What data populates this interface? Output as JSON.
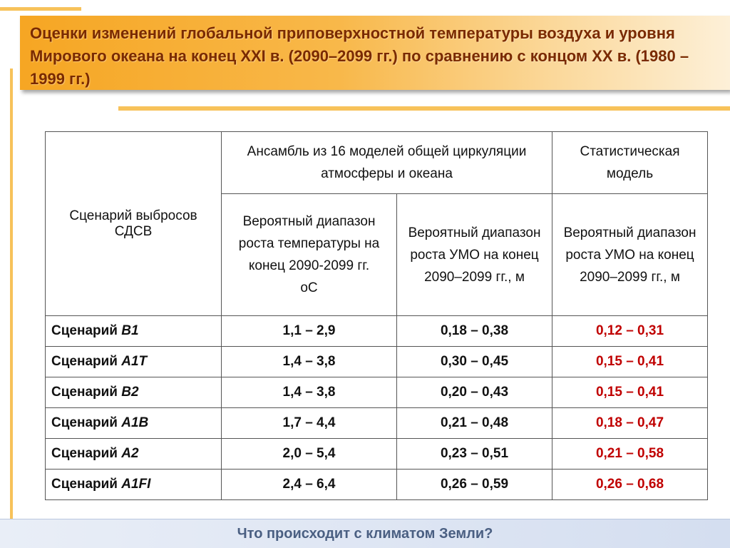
{
  "title": "Оценки изменений глобальной приповерхностной температуры воздуха  и уровня Мирового океана на конец XXI в. (2090–2099 гг.) по сравнению с концом XX в. (1980 – 1999 гг.)",
  "table": {
    "header_scenario": "Сценарий выбросов СДСВ",
    "header_ensemble": "Ансамбль из 16 моделей общей циркуляции атмосферы и океана",
    "header_statistical": "Статистическая модель",
    "sub_temp": "Вероятный диапазон роста температуры на конец 2090-2099 гг.",
    "sub_temp_unit": "оС",
    "sub_umo_ensemble": "Вероятный диапазон роста УМО на конец 2090–2099 гг., м",
    "sub_umo_statistical": "Вероятный диапазон роста УМО на конец 2090–2099 гг., м",
    "scenario_prefix": "Сценарий",
    "rows": [
      {
        "scenario": "B1",
        "temp": "1,1 – 2,9",
        "umo": "0,18 – 0,38",
        "stat": "0,12 – 0,31"
      },
      {
        "scenario": "A1T",
        "temp": "1,4 – 3,8",
        "umo": "0,30 – 0,45",
        "stat": "0,15 – 0,41"
      },
      {
        "scenario": "B2",
        "temp": "1,4 – 3,8",
        "umo": "0,20 – 0,43",
        "stat": "0,15 – 0,41"
      },
      {
        "scenario": "A1B",
        "temp": "1,7 – 4,4",
        "umo": "0,21 – 0,48",
        "stat": "0,18 – 0,47"
      },
      {
        "scenario": "A2",
        "temp": "2,0 – 5,4",
        "umo": "0,23 – 0,51",
        "stat": "0,21 – 0,58"
      },
      {
        "scenario": "A1FI",
        "temp": "2,4 – 6,4",
        "umo": "0,26 – 0,59",
        "stat": "0,26 – 0,68"
      }
    ]
  },
  "footer": "Что происходит с климатом Земли?",
  "colors": {
    "title_text": "#7a2a00",
    "accent_orange": "#f7c25a",
    "highlight_red": "#c00000",
    "footer_text": "#4a5f82"
  }
}
